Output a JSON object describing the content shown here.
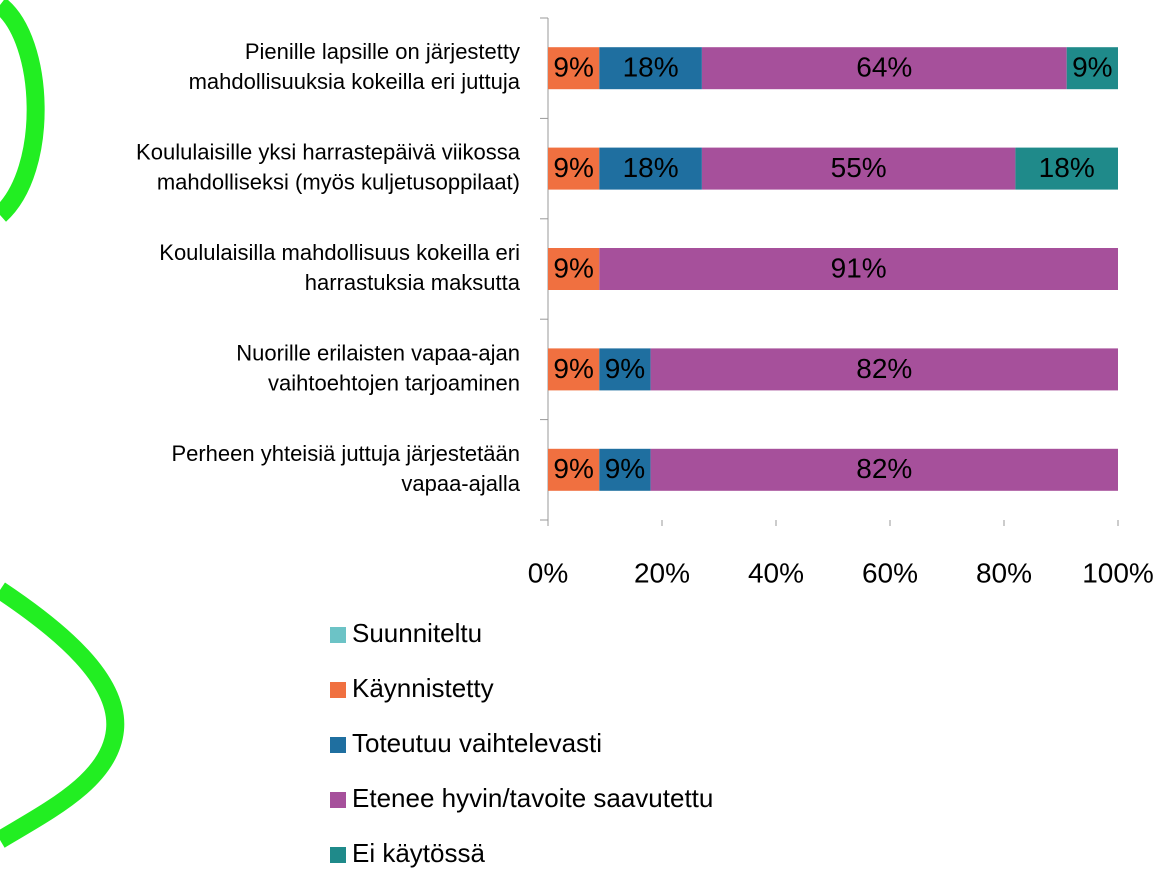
{
  "chart_data": {
    "type": "stacked-bar-horizontal",
    "categories": [
      "Pienille lapsille on järjestetty\nmahdollisuuksia kokeilla eri juttuja",
      "Koululaisille yksi harrastepäivä viikossa\nmahdolliseksi  (myös kuljetusoppilaat)",
      "Koululaisilla mahdollisuus kokeilla eri\nharrastuksia maksutta",
      "Nuorille erilaisten vapaa-ajan\nvaihtoehtojen tarjoaminen",
      "Perheen yhteisiä juttuja järjestetään\nvapaa-ajalla"
    ],
    "series": [
      {
        "name": "Suunniteltu",
        "color": "#6cc3c6",
        "values": [
          null,
          null,
          null,
          null,
          null
        ],
        "value_labels": [
          null,
          null,
          null,
          null,
          null
        ]
      },
      {
        "name": "Käynnistetty",
        "color": "#f07040",
        "values": [
          9,
          9,
          9,
          9,
          9
        ],
        "value_labels": [
          "9%",
          "9%",
          "9%",
          "9%",
          "9%"
        ]
      },
      {
        "name": "Toteutuu vaihtelevasti",
        "color": "#1f6fa0",
        "values": [
          18,
          18,
          null,
          9,
          9
        ],
        "value_labels": [
          "18%",
          "18%",
          null,
          "9%",
          "9%"
        ]
      },
      {
        "name": "Etenee hyvin/tavoite saavutettu",
        "color": "#a6509b",
        "values": [
          64,
          55,
          91,
          82,
          82
        ],
        "value_labels": [
          "64%",
          "55%",
          "91%",
          "82%",
          "82%"
        ]
      },
      {
        "name": "Ei käytössä",
        "color": "#1f8a8a",
        "values": [
          9,
          18,
          null,
          null,
          null
        ],
        "value_labels": [
          "9%",
          "18%",
          null,
          null,
          null
        ]
      }
    ],
    "xlim": [
      0,
      100
    ],
    "xticks": [
      {
        "value": 0,
        "label": "0%"
      },
      {
        "value": 20,
        "label": "20%"
      },
      {
        "value": 40,
        "label": "40%"
      },
      {
        "value": 60,
        "label": "60%"
      },
      {
        "value": 80,
        "label": "80%"
      },
      {
        "value": 100,
        "label": "100%"
      }
    ]
  }
}
